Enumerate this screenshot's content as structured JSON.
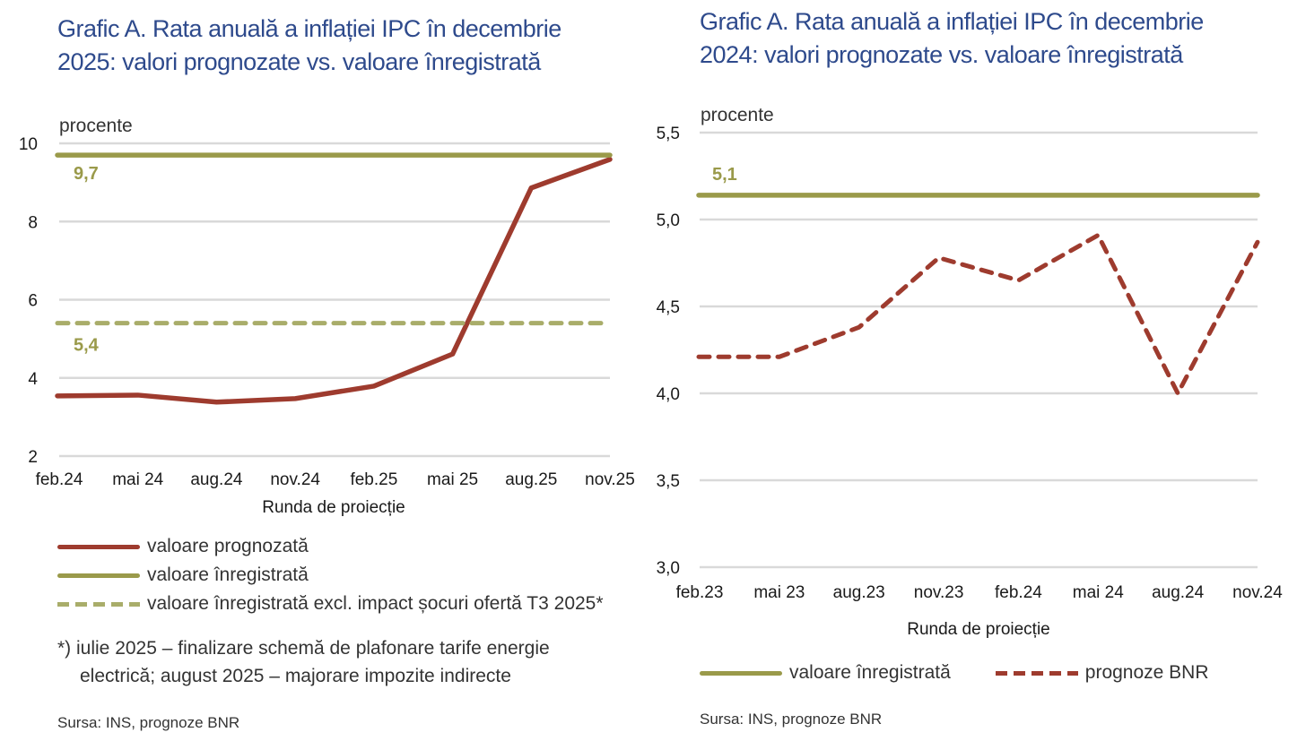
{
  "colors": {
    "title": "#2e4a8c",
    "forecast": "#9e3b2e",
    "recorded": "#9a9a4a",
    "recorded_excl": "#a9ad6a",
    "grid": "#d9d9d9"
  },
  "chart_data": [
    {
      "type": "line",
      "title": "Grafic A. Rata anuală a inflației IPC în decembrie 2025: valori prognozate vs. valoare înregistrată",
      "unit_label": "procente",
      "xlabel": "Runda de proiecție",
      "ylabel": "",
      "ylim": [
        2,
        10
      ],
      "yticks": [
        2,
        4,
        6,
        8,
        10
      ],
      "ytick_labels": [
        "2",
        "4",
        "6",
        "8",
        "10"
      ],
      "grid": true,
      "categories": [
        "feb.24",
        "mai 24",
        "aug.24",
        "nov.24",
        "feb.25",
        "mai 25",
        "aug.25",
        "nov.25"
      ],
      "series": [
        {
          "name": "valoare prognozată",
          "style": "solid",
          "color": "#9e3b2e",
          "values": [
            3.54,
            3.56,
            3.38,
            3.47,
            3.79,
            4.61,
            8.86,
            9.59
          ]
        },
        {
          "name": "valoare înregistrată",
          "style": "solid",
          "color": "#9a9a4a",
          "values": [
            9.7,
            9.7,
            9.7,
            9.7,
            9.7,
            9.7,
            9.7,
            9.7
          ]
        },
        {
          "name": "valoare înregistrată excl. impact șocuri ofertă T3 2025*",
          "style": "dashed",
          "color": "#a9ad6a",
          "values": [
            5.4,
            5.4,
            5.4,
            5.4,
            5.4,
            5.4,
            5.4,
            5.4
          ]
        }
      ],
      "annotations": [
        {
          "text": "9,7",
          "value": 9.7
        },
        {
          "text": "5,4",
          "value": 5.4
        }
      ],
      "legend_position": "bottom",
      "footnote": "*) iulie 2025 – finalizare schemă de plafonare tarife energie electrică; august 2025 – majorare impozite indirecte",
      "footnote_lines": [
        "*) iulie 2025 – finalizare schemă de plafonare tarife energie",
        "electrică; august 2025 – majorare impozite indirecte"
      ],
      "source": "Sursa: INS, prognoze BNR"
    },
    {
      "type": "line",
      "title": "Grafic A. Rata anuală a inflației IPC în decembrie 2024: valori prognozate vs. valoare înregistrată",
      "unit_label": "procente",
      "xlabel": "Runda de proiecție",
      "ylabel": "",
      "ylim": [
        3.0,
        5.5
      ],
      "yticks": [
        3.0,
        3.5,
        4.0,
        4.5,
        5.0,
        5.5
      ],
      "ytick_labels": [
        "3,0",
        "3,5",
        "4,0",
        "4,5",
        "5,0",
        "5,5"
      ],
      "grid": true,
      "categories": [
        "feb.23",
        "mai 23",
        "aug.23",
        "nov.23",
        "feb.24",
        "mai 24",
        "aug.24",
        "nov.24"
      ],
      "series": [
        {
          "name": "valoare înregistrată",
          "style": "solid",
          "color": "#9a9a4a",
          "values": [
            5.14,
            5.14,
            5.14,
            5.14,
            5.14,
            5.14,
            5.14,
            5.14
          ]
        },
        {
          "name": "prognoze BNR",
          "style": "dashed",
          "color": "#9e3b2e",
          "values": [
            4.21,
            4.21,
            4.38,
            4.78,
            4.65,
            4.91,
            4.0,
            4.87
          ]
        }
      ],
      "annotations": [
        {
          "text": "5,1",
          "value": 5.14
        }
      ],
      "legend_position": "bottom",
      "source": "Sursa: INS, prognoze BNR"
    }
  ],
  "left": {
    "title_line1": "Grafic A. Rata anuală a inflației IPC în decembrie",
    "title_line2": "2025: valori prognozate vs. valoare înregistrată",
    "unit": "procente",
    "legend": [
      "valoare prognozată",
      "valoare înregistrată",
      "valoare înregistrată excl. impact șocuri ofertă T3 2025*"
    ],
    "note_line1": "*) iulie 2025 – finalizare schemă de plafonare tarife energie",
    "note_line2": "electrică; august 2025 – majorare impozite indirecte",
    "source": "Sursa: INS, prognoze BNR"
  },
  "right": {
    "title_line1": "Grafic A. Rata anuală a inflației IPC în decembrie",
    "title_line2": "2024: valori prognozate vs. valoare înregistrată",
    "unit": "procente",
    "legend": [
      "valoare înregistrată",
      "prognoze BNR"
    ],
    "source": "Sursa: INS, prognoze BNR"
  }
}
